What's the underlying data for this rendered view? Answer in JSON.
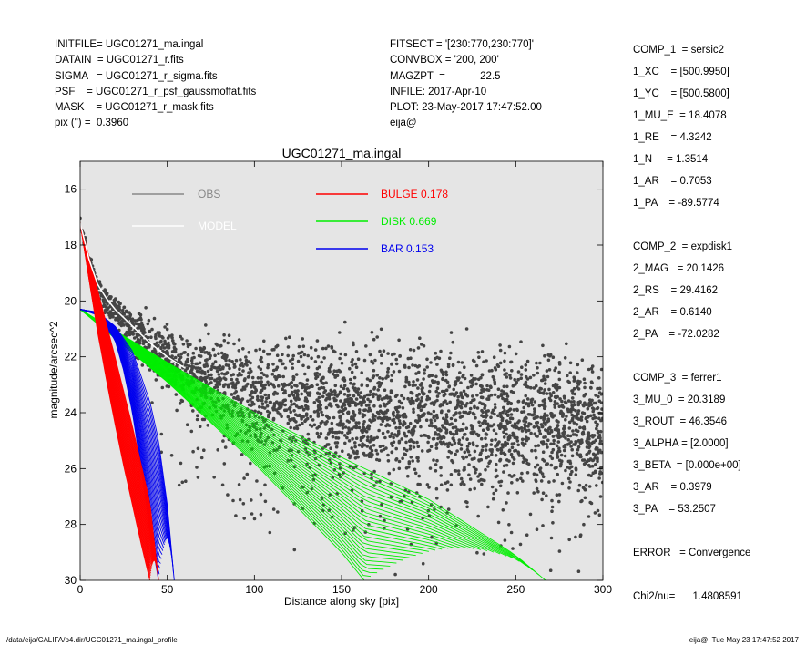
{
  "header_left": [
    {
      "key": "INITFILE=",
      "value": " UGC01271_ma.ingal"
    },
    {
      "key": "DATAIN  =",
      "value": " UGC01271_r.fits"
    },
    {
      "key": "SIGMA   =",
      "value": " UGC01271_r_sigma.fits"
    },
    {
      "key": "PSF    =",
      "value": " UGC01271_r_psf_gaussmoffat.fits"
    },
    {
      "key": "MASK    =",
      "value": " UGC01271_r_mask.fits"
    },
    {
      "key": "pix (\") =",
      "value": "  0.3960"
    }
  ],
  "header_mid": [
    {
      "key": "FITSECT =",
      "value": " '[230:770,230:770]'"
    },
    {
      "key": "CONVBOX =",
      "value": " '200, 200'"
    },
    {
      "key": "MAGZPT  =",
      "value": "            22.5"
    },
    {
      "key": "INFILE:",
      "value": " 2017-Apr-10"
    },
    {
      "key": "PLOT:",
      "value": " 23-May-2017 17:47:52.00"
    },
    {
      "key": "eija@",
      "value": ""
    }
  ],
  "header_right": [
    "COMP_1  = sersic2",
    "1_XC    = [500.9950]",
    "1_YC    = [500.5800]",
    "1_MU_E  = 18.4078",
    "1_RE    = 4.3242",
    "1_N     = 1.3514",
    "1_AR    = 0.7053",
    "1_PA    = -89.5774",
    "",
    "COMP_2  = expdisk1",
    "2_MAG   = 20.1426",
    "2_RS    = 29.4162",
    "2_AR    = 0.6140",
    "2_PA    = -72.0282",
    "",
    "COMP_3  = ferrer1",
    "3_MU_0  = 20.3189",
    "3_ROUT  = 46.3546",
    "3_ALPHA = [2.0000]",
    "3_BETA  = [0.000e+00]",
    "3_AR    = 0.3979",
    "3_PA    = 53.2507",
    "",
    "ERROR   = Convergence",
    "",
    "Chi2/nu=      1.4808591"
  ],
  "chart_data": {
    "type": "scatter",
    "title": "UGC01271_ma.ingal",
    "xlabel": "Distance along sky [pix]",
    "ylabel": "magnitude/arcsec^2",
    "xlim": [
      0,
      300
    ],
    "ylim": [
      30,
      15
    ],
    "x_ticks": [
      0,
      50,
      100,
      150,
      200,
      250,
      300
    ],
    "y_ticks": [
      16,
      18,
      20,
      22,
      24,
      26,
      28,
      30
    ],
    "background": "#e5e5e5",
    "legend": [
      {
        "name": "OBS",
        "color": "#888888",
        "label": "OBS"
      },
      {
        "name": "MODEL",
        "color": "#ffffff",
        "label": "MODEL"
      },
      {
        "name": "BULGE",
        "color": "#ff0000",
        "label": "BULGE  0.178"
      },
      {
        "name": "DISK",
        "color": "#00ee00",
        "label": "DISK  0.669"
      },
      {
        "name": "BAR",
        "color": "#0000ee",
        "label": "BAR  0.153"
      }
    ],
    "series": [
      {
        "name": "OBS",
        "color": "#444444",
        "x": [
          0,
          5,
          10,
          15,
          20,
          25,
          30,
          40,
          50,
          60,
          80,
          100,
          120,
          150,
          180,
          200,
          220,
          250,
          280,
          300
        ],
        "y": [
          17.1,
          18.6,
          19.5,
          20.0,
          20.3,
          20.6,
          21.0,
          21.6,
          22.0,
          22.4,
          22.9,
          23.3,
          23.5,
          23.8,
          24.0,
          24.1,
          24.2,
          24.3,
          24.4,
          24.5
        ]
      },
      {
        "name": "MODEL",
        "color": "#ffffff",
        "x": [
          0,
          5,
          10,
          15,
          20,
          25,
          30,
          40,
          50,
          60
        ],
        "y": [
          17.2,
          18.5,
          19.4,
          19.9,
          20.3,
          20.6,
          20.9,
          21.5,
          22.0,
          22.4
        ]
      },
      {
        "name": "BULGE",
        "color": "#ff0000",
        "x_inner": [
          0,
          5,
          10,
          15,
          20,
          25,
          30,
          35,
          40
        ],
        "y_inner": [
          17.2,
          19.2,
          21.1,
          22.8,
          24.4,
          25.9,
          27.3,
          28.7,
          30.0
        ],
        "x_outer": [
          0,
          10,
          20,
          30,
          40,
          45
        ],
        "y_outer": [
          17.2,
          19.6,
          22.0,
          24.5,
          27.2,
          30.0
        ]
      },
      {
        "name": "DISK",
        "color": "#00ee00",
        "x_inner": [
          0,
          50,
          100,
          150,
          163
        ],
        "y_inner": [
          20.3,
          22.9,
          25.8,
          29.0,
          30.0
        ],
        "x_outer": [
          0,
          50,
          100,
          150,
          200,
          250,
          267
        ],
        "y_outer": [
          20.3,
          22.2,
          24.0,
          25.6,
          27.1,
          29.1,
          30.0
        ]
      },
      {
        "name": "BAR",
        "color": "#0000ee",
        "x_inner": [
          0,
          10,
          20,
          25,
          30,
          35,
          40,
          45
        ],
        "y_inner": [
          20.3,
          20.5,
          21.4,
          22.5,
          24.0,
          26.0,
          28.2,
          30.0
        ],
        "x_outer": [
          0,
          10,
          20,
          30,
          40,
          45,
          50,
          54
        ],
        "y_outer": [
          20.3,
          20.4,
          20.9,
          21.8,
          23.6,
          25.0,
          27.3,
          30.0
        ]
      }
    ]
  },
  "footer_left": "/data/eija/CALIFA/p4.dir/UGC01271_ma.ingal_profile",
  "footer_right": "eija@  Tue May 23 17:47:52 2017"
}
